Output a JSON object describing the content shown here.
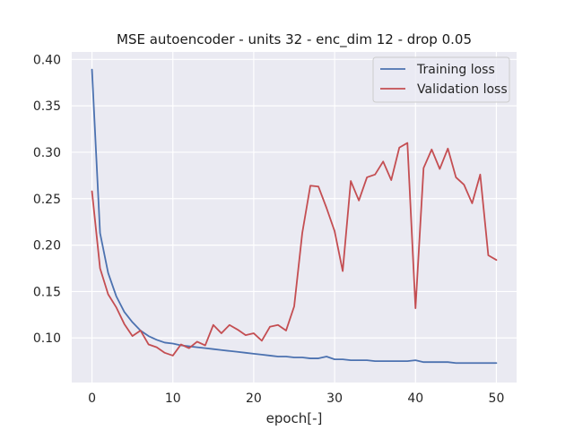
{
  "chart_data": {
    "type": "line",
    "title": "MSE autoencoder - units 32 - enc_dim 12 - drop 0.05",
    "xlabel": "epoch[-]",
    "ylabel": "",
    "xlim": [
      -2.5,
      52.5
    ],
    "ylim": [
      0.052,
      0.408
    ],
    "xticks": [
      0,
      10,
      20,
      30,
      40,
      50
    ],
    "xtick_labels": [
      "0",
      "10",
      "20",
      "30",
      "40",
      "50"
    ],
    "yticks": [
      0.1,
      0.15,
      0.2,
      0.25,
      0.3,
      0.35,
      0.4
    ],
    "ytick_labels": [
      "0.10",
      "0.15",
      "0.20",
      "0.25",
      "0.30",
      "0.35",
      "0.40"
    ],
    "grid": true,
    "legend_position": "top-right",
    "x": [
      0,
      1,
      2,
      3,
      4,
      5,
      6,
      7,
      8,
      9,
      10,
      11,
      12,
      13,
      14,
      15,
      16,
      17,
      18,
      19,
      20,
      21,
      22,
      23,
      24,
      25,
      26,
      27,
      28,
      29,
      30,
      31,
      32,
      33,
      34,
      35,
      36,
      37,
      38,
      39,
      40,
      41,
      42,
      43,
      44,
      45,
      46,
      47,
      48,
      49,
      50
    ],
    "series": [
      {
        "name": "Training loss",
        "color": "#4c72b0",
        "values": [
          0.389,
          0.213,
          0.17,
          0.145,
          0.128,
          0.117,
          0.108,
          0.102,
          0.098,
          0.095,
          0.094,
          0.092,
          0.091,
          0.09,
          0.089,
          0.088,
          0.087,
          0.086,
          0.085,
          0.084,
          0.083,
          0.082,
          0.081,
          0.08,
          0.08,
          0.079,
          0.079,
          0.078,
          0.078,
          0.08,
          0.077,
          0.077,
          0.076,
          0.076,
          0.076,
          0.075,
          0.075,
          0.075,
          0.075,
          0.075,
          0.076,
          0.074,
          0.074,
          0.074,
          0.074,
          0.073,
          0.073,
          0.073,
          0.073,
          0.073,
          0.073
        ]
      },
      {
        "name": "Validation loss",
        "color": "#c44e52",
        "values": [
          0.258,
          0.175,
          0.147,
          0.133,
          0.115,
          0.102,
          0.108,
          0.093,
          0.09,
          0.084,
          0.081,
          0.093,
          0.089,
          0.096,
          0.092,
          0.114,
          0.105,
          0.114,
          0.109,
          0.103,
          0.105,
          0.097,
          0.112,
          0.114,
          0.108,
          0.134,
          0.213,
          0.264,
          0.263,
          0.24,
          0.215,
          0.172,
          0.269,
          0.248,
          0.273,
          0.276,
          0.29,
          0.27,
          0.305,
          0.31,
          0.132,
          0.283,
          0.303,
          0.282,
          0.304,
          0.273,
          0.265,
          0.245,
          0.276,
          0.189,
          0.184
        ]
      }
    ]
  }
}
